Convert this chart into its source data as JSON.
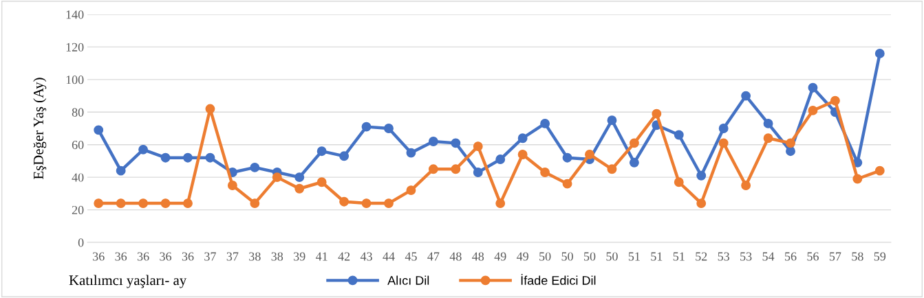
{
  "chart_data": {
    "type": "line",
    "xlabel": "Katılımcı yaşları- ay",
    "ylabel": "EşDeğer Yaş (Ay)",
    "categories": [
      "36",
      "36",
      "36",
      "36",
      "36",
      "37",
      "37",
      "38",
      "38",
      "39",
      "41",
      "42",
      "43",
      "44",
      "45",
      "47",
      "48",
      "48",
      "49",
      "49",
      "50",
      "50",
      "50",
      "50",
      "51",
      "51",
      "51",
      "52",
      "53",
      "53",
      "54",
      "56",
      "56",
      "57",
      "58",
      "59"
    ],
    "series": [
      {
        "name": "Alıcı Dil",
        "color": "#4472c4",
        "values": [
          69,
          44,
          57,
          52,
          52,
          52,
          43,
          46,
          43,
          40,
          56,
          53,
          71,
          70,
          55,
          62,
          61,
          43,
          51,
          64,
          73,
          52,
          51,
          75,
          49,
          72,
          66,
          41,
          70,
          90,
          73,
          56,
          95,
          80,
          49,
          116
        ]
      },
      {
        "name": "İfade Edici Dil",
        "color": "#ed7d31",
        "values": [
          24,
          24,
          24,
          24,
          24,
          82,
          35,
          24,
          40,
          33,
          37,
          25,
          24,
          24,
          32,
          45,
          45,
          59,
          24,
          54,
          43,
          36,
          54,
          45,
          61,
          79,
          37,
          24,
          61,
          35,
          64,
          61,
          81,
          87,
          39,
          44
        ]
      }
    ],
    "ylim": [
      0,
      140
    ],
    "yticks": [
      0,
      20,
      40,
      60,
      80,
      100,
      120,
      140
    ],
    "grid": "y",
    "legend": "bottom",
    "marker": "circle",
    "line_style": "solid"
  }
}
